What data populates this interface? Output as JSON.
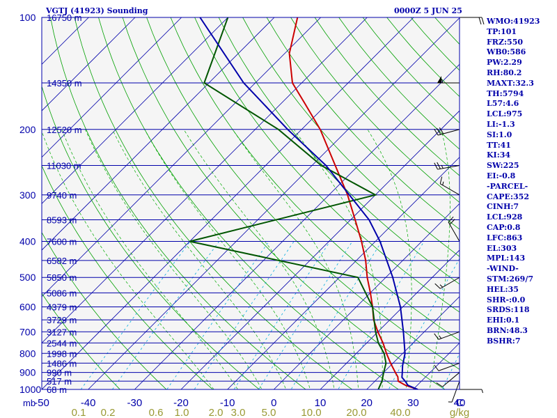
{
  "header": {
    "station_title": "VGTJ (41923) Sounding",
    "valid_time": "0000Z  5 JUN 25"
  },
  "indices": [
    "WMO:41923",
    "TP:101",
    "FRZ:550",
    "WB0:586",
    "PW:2.29",
    "RH:80.2",
    "MAXT:32.3",
    "TH:5794",
    "L57:4.6",
    "LCL:975",
    "LI:-1.3",
    "SI:1.0",
    "TT:41",
    "KI:34",
    "SW:225",
    "EI:-0.8",
    "-PARCEL-",
    "CAPE:352",
    "CINH:7",
    "LCL:928",
    "CAP:0.8",
    "LFC:863",
    "EL:303",
    "MPL:143",
    "-WIND-",
    "STM:269/7",
    "HEL:35",
    "SHR-:0.0",
    "SRDS:118",
    "EHI:0.1",
    "BRN:48.3",
    "BSHR:7"
  ],
  "chart_data": {
    "type": "line",
    "subtype": "skew-T log-P sounding",
    "x_axis": {
      "label": "C",
      "ticks": [
        -50,
        -40,
        -30,
        -20,
        -10,
        0,
        10,
        20,
        30,
        40
      ],
      "range": [
        -50,
        40
      ]
    },
    "y_axis": {
      "label": "mb",
      "scale": "log",
      "range": [
        1000,
        100
      ],
      "ticks": [
        100,
        200,
        300,
        400,
        500,
        600,
        700,
        800,
        900,
        1000
      ]
    },
    "mixing_ratio_axis": {
      "label": "g/kg",
      "ticks": [
        "0.1",
        "0.2",
        "0.6",
        "1.0",
        "2.0",
        "3.0",
        "5.0",
        "10.0",
        "20.0",
        "40.0"
      ]
    },
    "height_labels": [
      {
        "p": 100,
        "label": "16750 m"
      },
      {
        "p": 150,
        "label": "14350 m"
      },
      {
        "p": 200,
        "label": "12520 m"
      },
      {
        "p": 250,
        "label": "11030 m"
      },
      {
        "p": 300,
        "label": "9740 m"
      },
      {
        "p": 350,
        "label": "8593 m"
      },
      {
        "p": 400,
        "label": "7600 m"
      },
      {
        "p": 450,
        "label": "6582 m"
      },
      {
        "p": 500,
        "label": "5850 m"
      },
      {
        "p": 550,
        "label": "5086 m"
      },
      {
        "p": 600,
        "label": "4379 m"
      },
      {
        "p": 650,
        "label": "3729 m"
      },
      {
        "p": 700,
        "label": "3127 m"
      },
      {
        "p": 750,
        "label": "2544 m"
      },
      {
        "p": 800,
        "label": "1998 m"
      },
      {
        "p": 850,
        "label": "1486 m"
      },
      {
        "p": 900,
        "label": "990 m"
      },
      {
        "p": 950,
        "label": "517 m"
      },
      {
        "p": 1000,
        "label": "68 m"
      }
    ],
    "series": [
      {
        "key": "temperature",
        "color": "#cc0000",
        "points": [
          [
            1000,
            31.0
          ],
          [
            975,
            27.5
          ],
          [
            950,
            25.0
          ],
          [
            925,
            24.0
          ],
          [
            900,
            22.5
          ],
          [
            850,
            19.5
          ],
          [
            800,
            16.5
          ],
          [
            750,
            13.5
          ],
          [
            700,
            10.0
          ],
          [
            650,
            6.5
          ],
          [
            600,
            3.5
          ],
          [
            550,
            0.0
          ],
          [
            500,
            -4.0
          ],
          [
            450,
            -8.0
          ],
          [
            400,
            -13.0
          ],
          [
            350,
            -19.0
          ],
          [
            300,
            -26.0
          ],
          [
            250,
            -35.0
          ],
          [
            200,
            -46.0
          ],
          [
            170,
            -55.0
          ],
          [
            150,
            -62.0
          ],
          [
            125,
            -69.0
          ],
          [
            100,
            -75.0
          ]
        ]
      },
      {
        "key": "dewpoint",
        "color": "#005500",
        "points": [
          [
            1000,
            22.5
          ],
          [
            950,
            21.5
          ],
          [
            900,
            20.0
          ],
          [
            850,
            18.5
          ],
          [
            800,
            16.0
          ],
          [
            750,
            12.5
          ],
          [
            700,
            9.5
          ],
          [
            600,
            3.5
          ],
          [
            500,
            -6.0
          ],
          [
            400,
            -50.0
          ],
          [
            300,
            -20.0
          ],
          [
            250,
            -38.0
          ],
          [
            200,
            -55.0
          ],
          [
            150,
            -81.0
          ],
          [
            100,
            -90.0
          ]
        ]
      },
      {
        "key": "parcel",
        "color": "#0000aa",
        "points": [
          [
            1000,
            31.0
          ],
          [
            975,
            28.0
          ],
          [
            950,
            26.5
          ],
          [
            928,
            25.0
          ],
          [
            900,
            24.0
          ],
          [
            863,
            22.6
          ],
          [
            800,
            20.5
          ],
          [
            700,
            15.5
          ],
          [
            600,
            9.5
          ],
          [
            500,
            1.5
          ],
          [
            400,
            -9.0
          ],
          [
            350,
            -16.0
          ],
          [
            303,
            -25.0
          ],
          [
            250,
            -37.0
          ],
          [
            200,
            -53.0
          ],
          [
            150,
            -72.5
          ],
          [
            100,
            -96.0
          ]
        ]
      }
    ],
    "wind_barbs": [
      {
        "p": 1000,
        "dir": 90,
        "kt": 5
      },
      {
        "p": 950,
        "dir": 200,
        "kt": 5
      },
      {
        "p": 900,
        "dir": 230,
        "kt": 10
      },
      {
        "p": 850,
        "dir": 250,
        "kt": 10
      },
      {
        "p": 700,
        "dir": 250,
        "kt": 15
      },
      {
        "p": 500,
        "dir": 240,
        "kt": 15
      },
      {
        "p": 400,
        "dir": 330,
        "kt": 20
      },
      {
        "p": 300,
        "dir": 300,
        "kt": 15
      },
      {
        "p": 250,
        "dir": 260,
        "kt": 25
      },
      {
        "p": 200,
        "dir": 255,
        "kt": 30
      },
      {
        "p": 150,
        "dir": 270,
        "kt": 55
      },
      {
        "p": 100,
        "dir": 90,
        "kt": 20
      }
    ],
    "colors": {
      "isobars": "#0000aa",
      "isotherms": "#0000aa",
      "dry_adiabats": "#00a000",
      "moist_adiabats": "#00aa00",
      "mixing_ratio": "#00aadd",
      "axis_labels": "#0000aa",
      "mixing_ratio_labels": "#999933",
      "background": "#f5f5f5"
    }
  }
}
